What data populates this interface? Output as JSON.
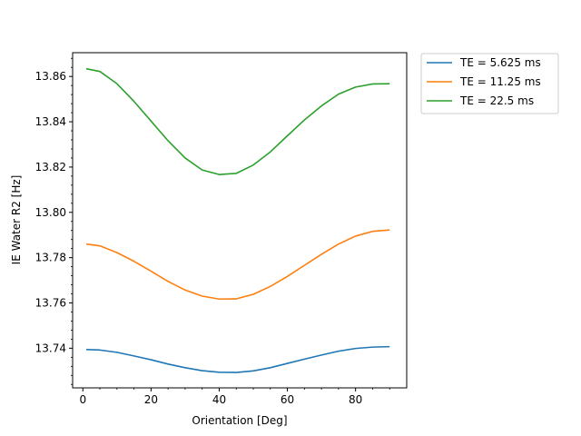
{
  "chart_data": {
    "type": "line",
    "xlabel": "Orientation [Deg]",
    "ylabel": "IE Water R2 [Hz]",
    "xlim": [
      -3,
      95
    ],
    "ylim": [
      13.7225,
      13.8705
    ],
    "x_ticks": [
      0,
      20,
      40,
      60,
      80
    ],
    "y_ticks": [
      13.74,
      13.76,
      13.78,
      13.8,
      13.82,
      13.84,
      13.86
    ],
    "y_tick_labels": [
      "13.74",
      "13.76",
      "13.78",
      "13.80",
      "13.82",
      "13.84",
      "13.86"
    ],
    "legend_position": "outside-top-right",
    "grid": false,
    "x": [
      1,
      5,
      10,
      15,
      20,
      25,
      30,
      35,
      40,
      45,
      50,
      55,
      60,
      65,
      70,
      75,
      80,
      85,
      90
    ],
    "series": [
      {
        "name": "TE = 5.625 ms",
        "color": "#1f77b4",
        "values": [
          13.7394,
          13.7392,
          13.7382,
          13.7366,
          13.7349,
          13.733,
          13.7314,
          13.7301,
          13.7294,
          13.7293,
          13.73,
          13.7314,
          13.7333,
          13.7352,
          13.737,
          13.7387,
          13.7399,
          13.7405,
          13.7407
        ]
      },
      {
        "name": "TE = 11.25 ms",
        "color": "#ff7f0e",
        "values": [
          13.786,
          13.7852,
          13.7822,
          13.7784,
          13.774,
          13.7695,
          13.7657,
          13.763,
          13.7617,
          13.7618,
          13.7638,
          13.7673,
          13.7717,
          13.7766,
          13.7815,
          13.786,
          13.7895,
          13.7916,
          13.7922
        ]
      },
      {
        "name": "TE = 22.5 ms",
        "color": "#2ca02c",
        "values": [
          13.8634,
          13.8622,
          13.8568,
          13.849,
          13.8403,
          13.8316,
          13.824,
          13.8187,
          13.8167,
          13.8172,
          13.8209,
          13.8267,
          13.8338,
          13.8408,
          13.847,
          13.8522,
          13.8553,
          13.8567,
          13.8568
        ]
      }
    ]
  }
}
